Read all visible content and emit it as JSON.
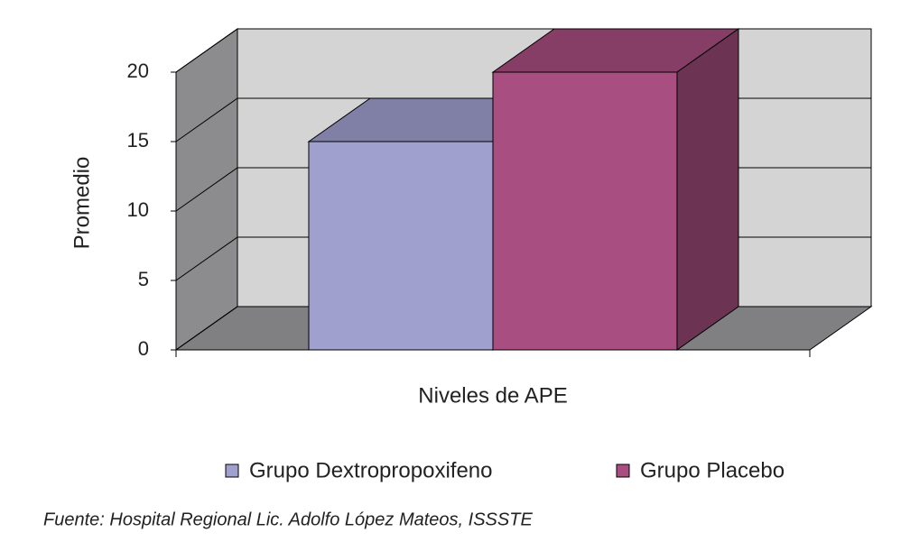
{
  "chart_data": {
    "type": "bar3d",
    "y_label": "Promedio",
    "categories": [
      "Niveles de APE"
    ],
    "series": [
      {
        "name": "Grupo Dextropropoxifeno",
        "color": "#a0a0cf",
        "values": [
          15
        ]
      },
      {
        "name": "Grupo Placebo",
        "color": "#a84e80",
        "values": [
          20
        ]
      }
    ],
    "ylim": [
      0,
      20
    ],
    "yticks": [
      0,
      5,
      10,
      15,
      20
    ],
    "grid": true,
    "legend": "bottom",
    "source": "Fuente: Hospital Regional Lic. Adolfo López Mateos, ISSSTE"
  }
}
